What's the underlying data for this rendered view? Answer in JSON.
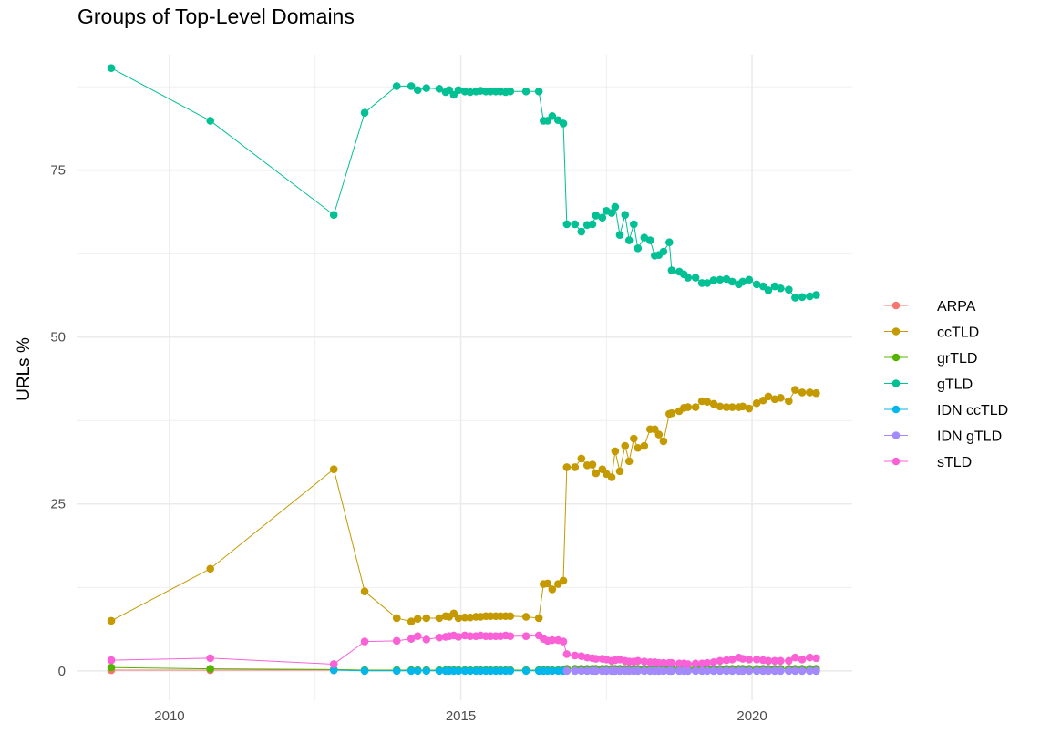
{
  "chart_data": {
    "type": "line",
    "title": "Groups of Top-Level Domains",
    "xlabel": "",
    "ylabel": "URLs %",
    "xlim": [
      2008.42,
      2021.72
    ],
    "ylim": [
      -4.4,
      92.3
    ],
    "x_ticks": [
      2010,
      2015,
      2020
    ],
    "y_ticks": [
      0,
      25,
      50,
      75
    ],
    "grid": true,
    "legend_position": "right",
    "markers": true,
    "x": [
      2009.0,
      2010.7,
      2012.82,
      2013.35,
      2013.9,
      2014.15,
      2014.26,
      2014.41,
      2014.63,
      2014.74,
      2014.8,
      2014.88,
      2014.96,
      2015.07,
      2015.16,
      2015.26,
      2015.34,
      2015.43,
      2015.51,
      2015.6,
      2015.68,
      2015.77,
      2015.85,
      2016.12,
      2016.34,
      2016.42,
      2016.49,
      2016.57,
      2016.67,
      2016.76,
      2016.82,
      2016.96,
      2017.07,
      2017.17,
      2017.26,
      2017.32,
      2017.43,
      2017.5,
      2017.59,
      2017.65,
      2017.73,
      2017.82,
      2017.89,
      2017.97,
      2018.04,
      2018.15,
      2018.25,
      2018.33,
      2018.4,
      2018.48,
      2018.58,
      2018.62,
      2018.75,
      2018.83,
      2018.9,
      2019.03,
      2019.14,
      2019.23,
      2019.34,
      2019.45,
      2019.56,
      2019.66,
      2019.77,
      2019.84,
      2019.95,
      2020.08,
      2020.19,
      2020.28,
      2020.39,
      2020.49,
      2020.63,
      2020.74,
      2020.86,
      2020.99,
      2021.1
    ],
    "series": [
      {
        "name": "ARPA",
        "color": "#F8766D",
        "values": [
          0.1,
          0.1,
          0.1,
          null,
          null,
          null,
          null,
          null,
          null,
          null,
          null,
          null,
          null,
          null,
          null,
          null,
          null,
          null,
          null,
          null,
          null,
          null,
          null,
          null,
          null,
          null,
          null,
          null,
          null,
          null,
          null,
          null,
          null,
          null,
          null,
          null,
          null,
          null,
          null,
          null,
          null,
          null,
          null,
          null,
          null,
          null,
          null,
          null,
          null,
          null,
          null,
          null,
          null,
          null,
          null,
          null,
          null,
          null,
          null,
          null,
          null,
          null,
          null,
          null,
          null,
          null,
          null,
          null,
          null,
          null,
          null,
          null,
          null,
          null,
          null
        ]
      },
      {
        "name": "ccTLD",
        "color": "#C49A00",
        "values": [
          7.5,
          15.3,
          30.2,
          11.9,
          7.9,
          7.4,
          7.8,
          7.9,
          7.9,
          8.2,
          8.1,
          8.6,
          7.9,
          8.0,
          8.0,
          8.1,
          8.1,
          8.2,
          8.2,
          8.2,
          8.2,
          8.2,
          8.2,
          8.1,
          7.9,
          13.0,
          13.1,
          12.2,
          13.0,
          13.5,
          30.5,
          30.5,
          31.8,
          30.8,
          30.9,
          29.6,
          30.2,
          29.5,
          29.0,
          32.9,
          29.9,
          33.7,
          31.4,
          34.8,
          33.4,
          33.7,
          36.2,
          36.2,
          35.4,
          34.4,
          38.5,
          38.6,
          38.9,
          39.4,
          39.5,
          39.5,
          40.4,
          40.3,
          40.0,
          39.6,
          39.5,
          39.5,
          39.5,
          39.6,
          39.3,
          40.1,
          40.5,
          41.1,
          40.7,
          40.9,
          40.4,
          42.1,
          41.7,
          41.7,
          41.6
        ]
      },
      {
        "name": "grTLD",
        "color": "#53B400",
        "values": [
          0.5,
          0.3,
          0.2,
          0.1,
          0.1,
          0.1,
          0.1,
          0.1,
          0.1,
          0.1,
          0.1,
          0.1,
          0.1,
          0.1,
          0.1,
          0.1,
          0.1,
          0.1,
          0.1,
          0.1,
          0.1,
          0.1,
          0.1,
          0.1,
          0.1,
          0.1,
          0.1,
          0.1,
          0.1,
          0.1,
          0.3,
          0.3,
          0.3,
          0.3,
          0.3,
          0.3,
          0.3,
          0.3,
          0.3,
          0.3,
          0.3,
          0.3,
          0.3,
          0.3,
          0.3,
          0.3,
          0.3,
          0.3,
          0.3,
          0.3,
          0.3,
          0.3,
          0.3,
          0.3,
          0.3,
          0.3,
          0.3,
          0.3,
          0.3,
          0.3,
          0.3,
          0.3,
          0.3,
          0.3,
          0.3,
          0.3,
          0.3,
          0.3,
          0.3,
          0.3,
          0.3,
          0.3,
          0.3,
          0.3,
          0.3
        ]
      },
      {
        "name": "gTLD",
        "color": "#00C094",
        "values": [
          90.3,
          82.4,
          68.3,
          83.6,
          87.6,
          87.6,
          87.0,
          87.3,
          87.2,
          86.7,
          87.0,
          86.3,
          87.0,
          86.8,
          86.7,
          86.8,
          86.9,
          86.8,
          86.8,
          86.8,
          86.8,
          86.7,
          86.8,
          86.8,
          86.8,
          82.4,
          82.4,
          83.1,
          82.5,
          82.0,
          66.9,
          66.9,
          65.8,
          66.8,
          66.9,
          68.2,
          67.9,
          68.9,
          68.6,
          69.5,
          65.3,
          68.3,
          64.5,
          66.9,
          63.3,
          64.9,
          64.5,
          62.2,
          62.3,
          62.8,
          64.2,
          60.0,
          59.8,
          59.4,
          58.9,
          58.9,
          58.1,
          58.1,
          58.5,
          58.6,
          58.7,
          58.3,
          57.9,
          58.3,
          58.6,
          57.9,
          57.6,
          57.0,
          57.6,
          57.3,
          57.1,
          55.9,
          56.0,
          56.1,
          56.3
        ]
      },
      {
        "name": "IDN ccTLD",
        "color": "#00B6EB",
        "values": [
          null,
          null,
          0.1,
          0.0,
          0.0,
          0.0,
          0.0,
          0.0,
          0.0,
          0.0,
          0.0,
          0.0,
          0.0,
          0.0,
          0.0,
          0.0,
          0.0,
          0.0,
          0.0,
          0.0,
          0.0,
          0.0,
          0.0,
          0.0,
          0.0,
          0.0,
          0.0,
          0.0,
          0.0,
          0.0,
          0.0,
          0.0,
          0.0,
          0.0,
          0.0,
          0.0,
          0.0,
          0.0,
          0.0,
          0.0,
          0.0,
          0.0,
          0.0,
          0.0,
          0.0,
          0.0,
          0.0,
          0.0,
          0.0,
          0.0,
          0.0,
          0.0,
          0.0,
          0.0,
          0.0,
          0.0,
          0.0,
          0.0,
          0.0,
          0.0,
          0.0,
          0.0,
          0.0,
          0.0,
          0.0,
          0.0,
          0.0,
          0.0,
          0.0,
          0.0,
          0.0,
          0.0,
          0.0,
          0.0,
          0.0
        ]
      },
      {
        "name": "IDN gTLD",
        "color": "#A58AFF",
        "values": [
          null,
          null,
          null,
          null,
          null,
          null,
          null,
          null,
          null,
          null,
          null,
          null,
          null,
          null,
          null,
          null,
          null,
          null,
          null,
          null,
          null,
          null,
          null,
          null,
          null,
          null,
          null,
          null,
          null,
          null,
          0.0,
          0.0,
          0.0,
          0.0,
          0.0,
          0.0,
          0.0,
          0.0,
          0.0,
          0.0,
          0.0,
          0.0,
          0.0,
          0.0,
          0.0,
          0.0,
          0.0,
          0.0,
          0.0,
          0.0,
          0.0,
          0.0,
          0.0,
          0.0,
          0.0,
          0.0,
          0.0,
          0.0,
          0.0,
          0.0,
          0.0,
          0.0,
          0.0,
          0.0,
          0.0,
          0.0,
          0.0,
          0.0,
          0.0,
          0.0,
          0.0,
          0.0,
          0.0,
          0.0,
          0.0
        ]
      },
      {
        "name": "sTLD",
        "color": "#FB61D7",
        "values": [
          1.6,
          1.9,
          1.0,
          4.4,
          4.5,
          4.8,
          5.2,
          4.7,
          5.0,
          5.1,
          5.2,
          5.3,
          5.1,
          5.3,
          5.2,
          5.2,
          5.3,
          5.2,
          5.2,
          5.2,
          5.2,
          5.3,
          5.2,
          5.2,
          5.3,
          4.8,
          4.5,
          4.6,
          4.6,
          4.4,
          2.5,
          2.3,
          2.2,
          2.0,
          1.9,
          1.8,
          1.8,
          1.7,
          1.5,
          1.6,
          1.7,
          1.5,
          1.4,
          1.4,
          1.5,
          1.4,
          1.3,
          1.3,
          1.2,
          1.2,
          1.2,
          1.2,
          1.1,
          1.1,
          1.0,
          1.1,
          1.1,
          1.2,
          1.3,
          1.5,
          1.6,
          1.7,
          2.0,
          1.8,
          1.7,
          1.7,
          1.6,
          1.5,
          1.5,
          1.5,
          1.5,
          2.0,
          1.7,
          2.0,
          1.9
        ]
      }
    ]
  }
}
